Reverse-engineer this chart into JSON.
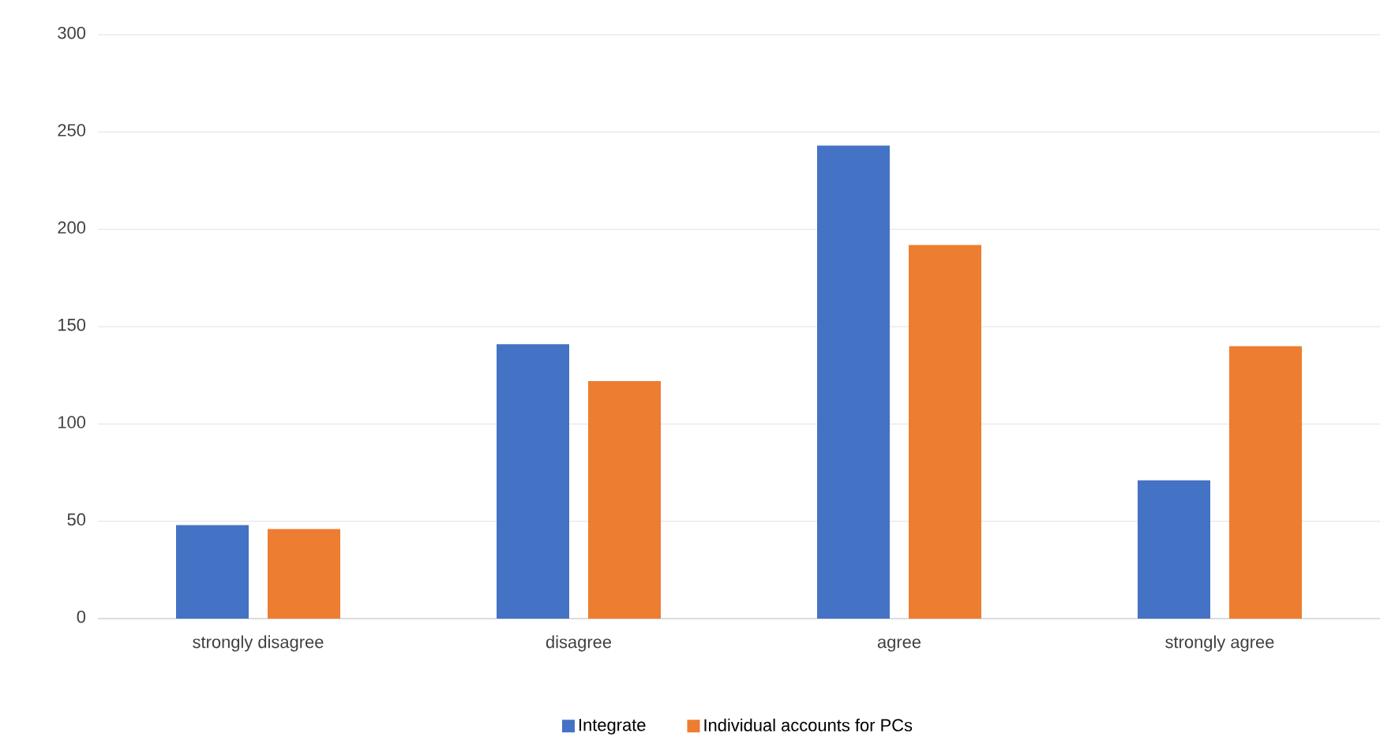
{
  "chart_data": {
    "type": "bar",
    "categories": [
      "strongly disagree",
      "disagree",
      "agree",
      "strongly agree"
    ],
    "series": [
      {
        "name": "Integrate",
        "color": "#4472c4",
        "values": [
          48,
          141,
          243,
          71
        ]
      },
      {
        "name": "Individual accounts for PCs",
        "color": "#ed7d31",
        "values": [
          46,
          122,
          192,
          140
        ]
      }
    ],
    "ylim": [
      0,
      300
    ],
    "yticks": [
      0,
      50,
      100,
      150,
      200,
      250,
      300
    ],
    "grid": "y",
    "legend": "bottom"
  }
}
